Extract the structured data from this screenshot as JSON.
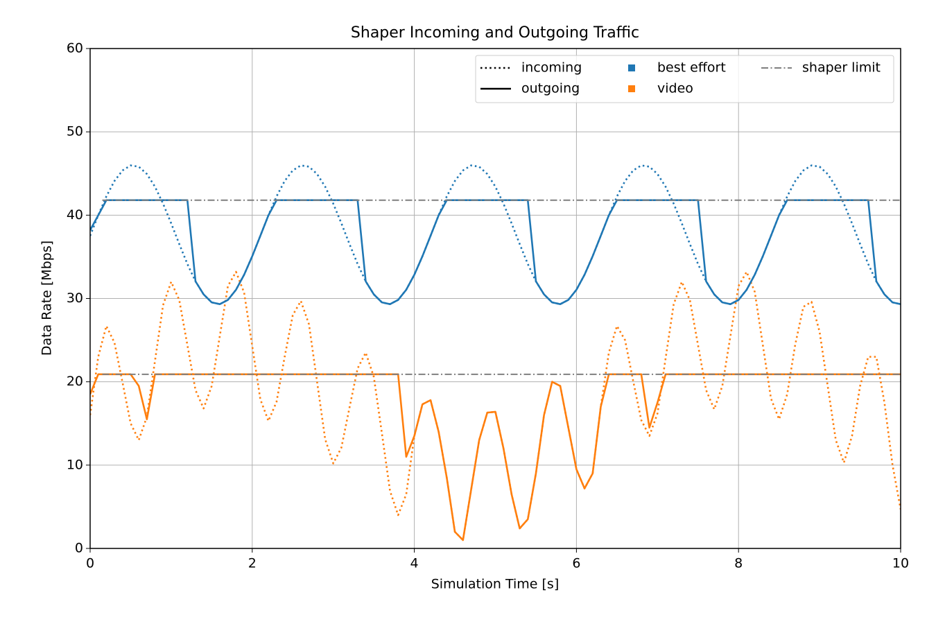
{
  "chart_data": {
    "type": "line",
    "title": "Shaper Incoming and Outgoing Traffic",
    "xlabel": "Simulation Time [s]",
    "ylabel": "Data Rate [Mbps]",
    "xlim": [
      0,
      10
    ],
    "xticks": [
      0,
      2,
      4,
      6,
      8,
      10
    ],
    "ylim": [
      0,
      60
    ],
    "yticks": [
      0,
      10,
      20,
      30,
      40,
      50,
      60
    ],
    "grid": true,
    "legend": "upper right",
    "line_styles": [
      {
        "name": "incoming",
        "dash": "dotted"
      },
      {
        "name": "outgoing",
        "dash": "solid"
      }
    ],
    "x": [
      0,
      0.1,
      0.2,
      0.3,
      0.4,
      0.5,
      0.6,
      0.7,
      0.8,
      0.9,
      1,
      1.1,
      1.2,
      1.3,
      1.4,
      1.5,
      1.6,
      1.7,
      1.8,
      1.9,
      2,
      2.1,
      2.2,
      2.3,
      2.4,
      2.5,
      2.6,
      2.7,
      2.8,
      2.9,
      3,
      3.1,
      3.2,
      3.3,
      3.4,
      3.5,
      3.6,
      3.7,
      3.8,
      3.9,
      4,
      4.1,
      4.2,
      4.3,
      4.4,
      4.5,
      4.6,
      4.7,
      4.8,
      4.9,
      5,
      5.1,
      5.2,
      5.3,
      5.4,
      5.5,
      5.6,
      5.7,
      5.8,
      5.9,
      6,
      6.1,
      6.2,
      6.3,
      6.4,
      6.5,
      6.6,
      6.7,
      6.8,
      6.9,
      7,
      7.1,
      7.2,
      7.3,
      7.4,
      7.5,
      7.6,
      7.7,
      7.8,
      7.9,
      8,
      8.1,
      8.2,
      8.3,
      8.4,
      8.5,
      8.6,
      8.7,
      8.8,
      8.9,
      9,
      9.1,
      9.2,
      9.3,
      9.4,
      9.5,
      9.6,
      9.7,
      9.8,
      9.9,
      10
    ],
    "series": [
      {
        "name": "best effort",
        "color": "#1f77b4",
        "lines": [
          {
            "values": [
              37.52,
              39.99,
              42.25,
              44.1,
              45.37,
              45.97,
              45.82,
              44.94,
              43.42,
              41.38,
              39.02,
              36.53,
              34.14,
              32.06,
              30.49,
              29.53,
              29.32,
              29.83,
              31.05,
              32.85,
              35.07,
              37.52,
              39.99,
              42.25,
              44.1,
              45.37,
              45.97,
              45.82,
              44.94,
              43.42,
              41.38,
              39.02,
              36.53,
              34.14,
              32.06,
              30.49,
              29.53,
              29.32,
              29.83,
              31.05,
              32.85,
              35.07,
              37.52,
              39.99,
              42.25,
              44.1,
              45.37,
              45.97,
              45.82,
              44.94,
              43.42,
              41.38,
              39.02,
              36.53,
              34.14,
              32.06,
              30.49,
              29.53,
              29.32,
              29.83,
              31.05,
              32.85,
              35.07,
              37.52,
              39.99,
              42.25,
              44.1,
              45.37,
              45.97,
              45.82,
              44.94,
              43.42,
              41.38,
              39.02,
              36.53,
              34.14,
              32.06,
              30.49,
              29.53,
              29.32,
              29.83,
              31.05,
              32.85,
              35.07,
              37.52,
              39.99,
              42.25,
              44.1,
              45.37,
              45.97,
              45.82,
              44.94,
              43.42,
              41.38,
              39.02,
              36.53,
              34.14,
              32.06,
              30.49,
              29.53,
              29.32
            ]
          },
          {
            "values": [
              38.2,
              39.99,
              41.8,
              41.8,
              41.8,
              41.8,
              41.8,
              41.8,
              41.8,
              41.8,
              41.8,
              41.8,
              41.8,
              32.06,
              30.49,
              29.53,
              29.32,
              29.83,
              31.05,
              32.85,
              35.07,
              37.52,
              39.99,
              41.8,
              41.8,
              41.8,
              41.8,
              41.8,
              41.8,
              41.8,
              41.8,
              41.8,
              41.8,
              41.8,
              32.06,
              30.49,
              29.53,
              29.32,
              29.83,
              31.05,
              32.85,
              35.07,
              37.52,
              39.99,
              41.8,
              41.8,
              41.8,
              41.8,
              41.8,
              41.8,
              41.8,
              41.8,
              41.8,
              41.8,
              41.8,
              32.06,
              30.49,
              29.53,
              29.32,
              29.83,
              31.05,
              32.85,
              35.07,
              37.52,
              39.99,
              41.8,
              41.8,
              41.8,
              41.8,
              41.8,
              41.8,
              41.8,
              41.8,
              41.8,
              41.8,
              41.8,
              32.06,
              30.49,
              29.53,
              29.32,
              29.83,
              31.05,
              32.85,
              35.07,
              37.52,
              39.99,
              41.8,
              41.8,
              41.8,
              41.8,
              41.8,
              41.8,
              41.8,
              41.8,
              41.8,
              41.8,
              41.8,
              32.06,
              30.49,
              29.53,
              29.32
            ]
          }
        ]
      },
      {
        "name": "video",
        "color": "#ff7f0e",
        "lines": [
          {
            "values": [
              16,
              23,
              26.7,
              24.7,
              19.9,
              15.0,
              13.0,
              15.8,
              22.5,
              29.2,
              32.0,
              29.8,
              24.4,
              19.0,
              16.8,
              19.5,
              25.5,
              31.5,
              33.2,
              30.7,
              24.3,
              17.9,
              15.3,
              17.6,
              23.0,
              28.0,
              29.7,
              26.9,
              20.0,
              13.1,
              10.2,
              12.1,
              16.9,
              21.6,
              23.5,
              20.6,
              13.8,
              6.9,
              4.0,
              6.5,
              13.5,
              17.3,
              17.8,
              14.0,
              8.5,
              2.0,
              1.0,
              7.0,
              13.0,
              16.3,
              16.4,
              12.0,
              6.5,
              2.4,
              3.5,
              9.0,
              16.0,
              20.0,
              19.5,
              14.5,
              9.5,
              7.2,
              9.0,
              17.0,
              23.5,
              26.7,
              25.0,
              20.1,
              15.4,
              13.5,
              16.2,
              22.8,
              29.3,
              32.0,
              29.8,
              24.4,
              19.0,
              16.7,
              19.5,
              25.5,
              31.5,
              33.2,
              30.8,
              24.4,
              18.0,
              15.5,
              18.5,
              24.5,
              29.0,
              29.6,
              26.0,
              19.5,
              13.0,
              10.3,
              13.5,
              19.5,
              23.0,
              23.0,
              17.5,
              10.0,
              4.7
            ]
          },
          {
            "values": [
              18.5,
              20.9,
              20.9,
              20.9,
              20.9,
              20.9,
              19.5,
              15.5,
              20.9,
              20.9,
              20.9,
              20.9,
              20.9,
              20.9,
              20.9,
              20.9,
              20.9,
              20.9,
              20.9,
              20.9,
              20.9,
              20.9,
              20.9,
              20.9,
              20.9,
              20.9,
              20.9,
              20.9,
              20.9,
              20.9,
              20.9,
              20.9,
              20.9,
              20.9,
              20.9,
              20.9,
              20.9,
              20.9,
              20.9,
              11.0,
              13.5,
              17.3,
              17.8,
              14.0,
              8.5,
              2.0,
              1.0,
              7.0,
              13.0,
              16.3,
              16.4,
              12.0,
              6.5,
              2.4,
              3.5,
              9.0,
              16.0,
              20.0,
              19.5,
              14.5,
              9.5,
              7.2,
              9.0,
              17.0,
              20.9,
              20.9,
              20.9,
              20.9,
              20.9,
              14.5,
              17.5,
              20.9,
              20.9,
              20.9,
              20.9,
              20.9,
              20.9,
              20.9,
              20.9,
              20.9,
              20.9,
              20.9,
              20.9,
              20.9,
              20.9,
              20.9,
              20.9,
              20.9,
              20.9,
              20.9,
              20.9,
              20.9,
              20.9,
              20.9,
              20.9,
              20.9,
              20.9,
              20.9,
              20.9,
              20.9,
              20.9
            ]
          }
        ]
      }
    ],
    "limit": {
      "name": "shaper limit",
      "color": "#7f7f7f",
      "dash": "dashdot",
      "lines": [
        {
          "x": [
            0.15,
            10
          ],
          "values": [
            41.8,
            41.8
          ]
        },
        {
          "x": [
            0.15,
            10
          ],
          "values": [
            20.9,
            20.9
          ]
        }
      ]
    }
  }
}
